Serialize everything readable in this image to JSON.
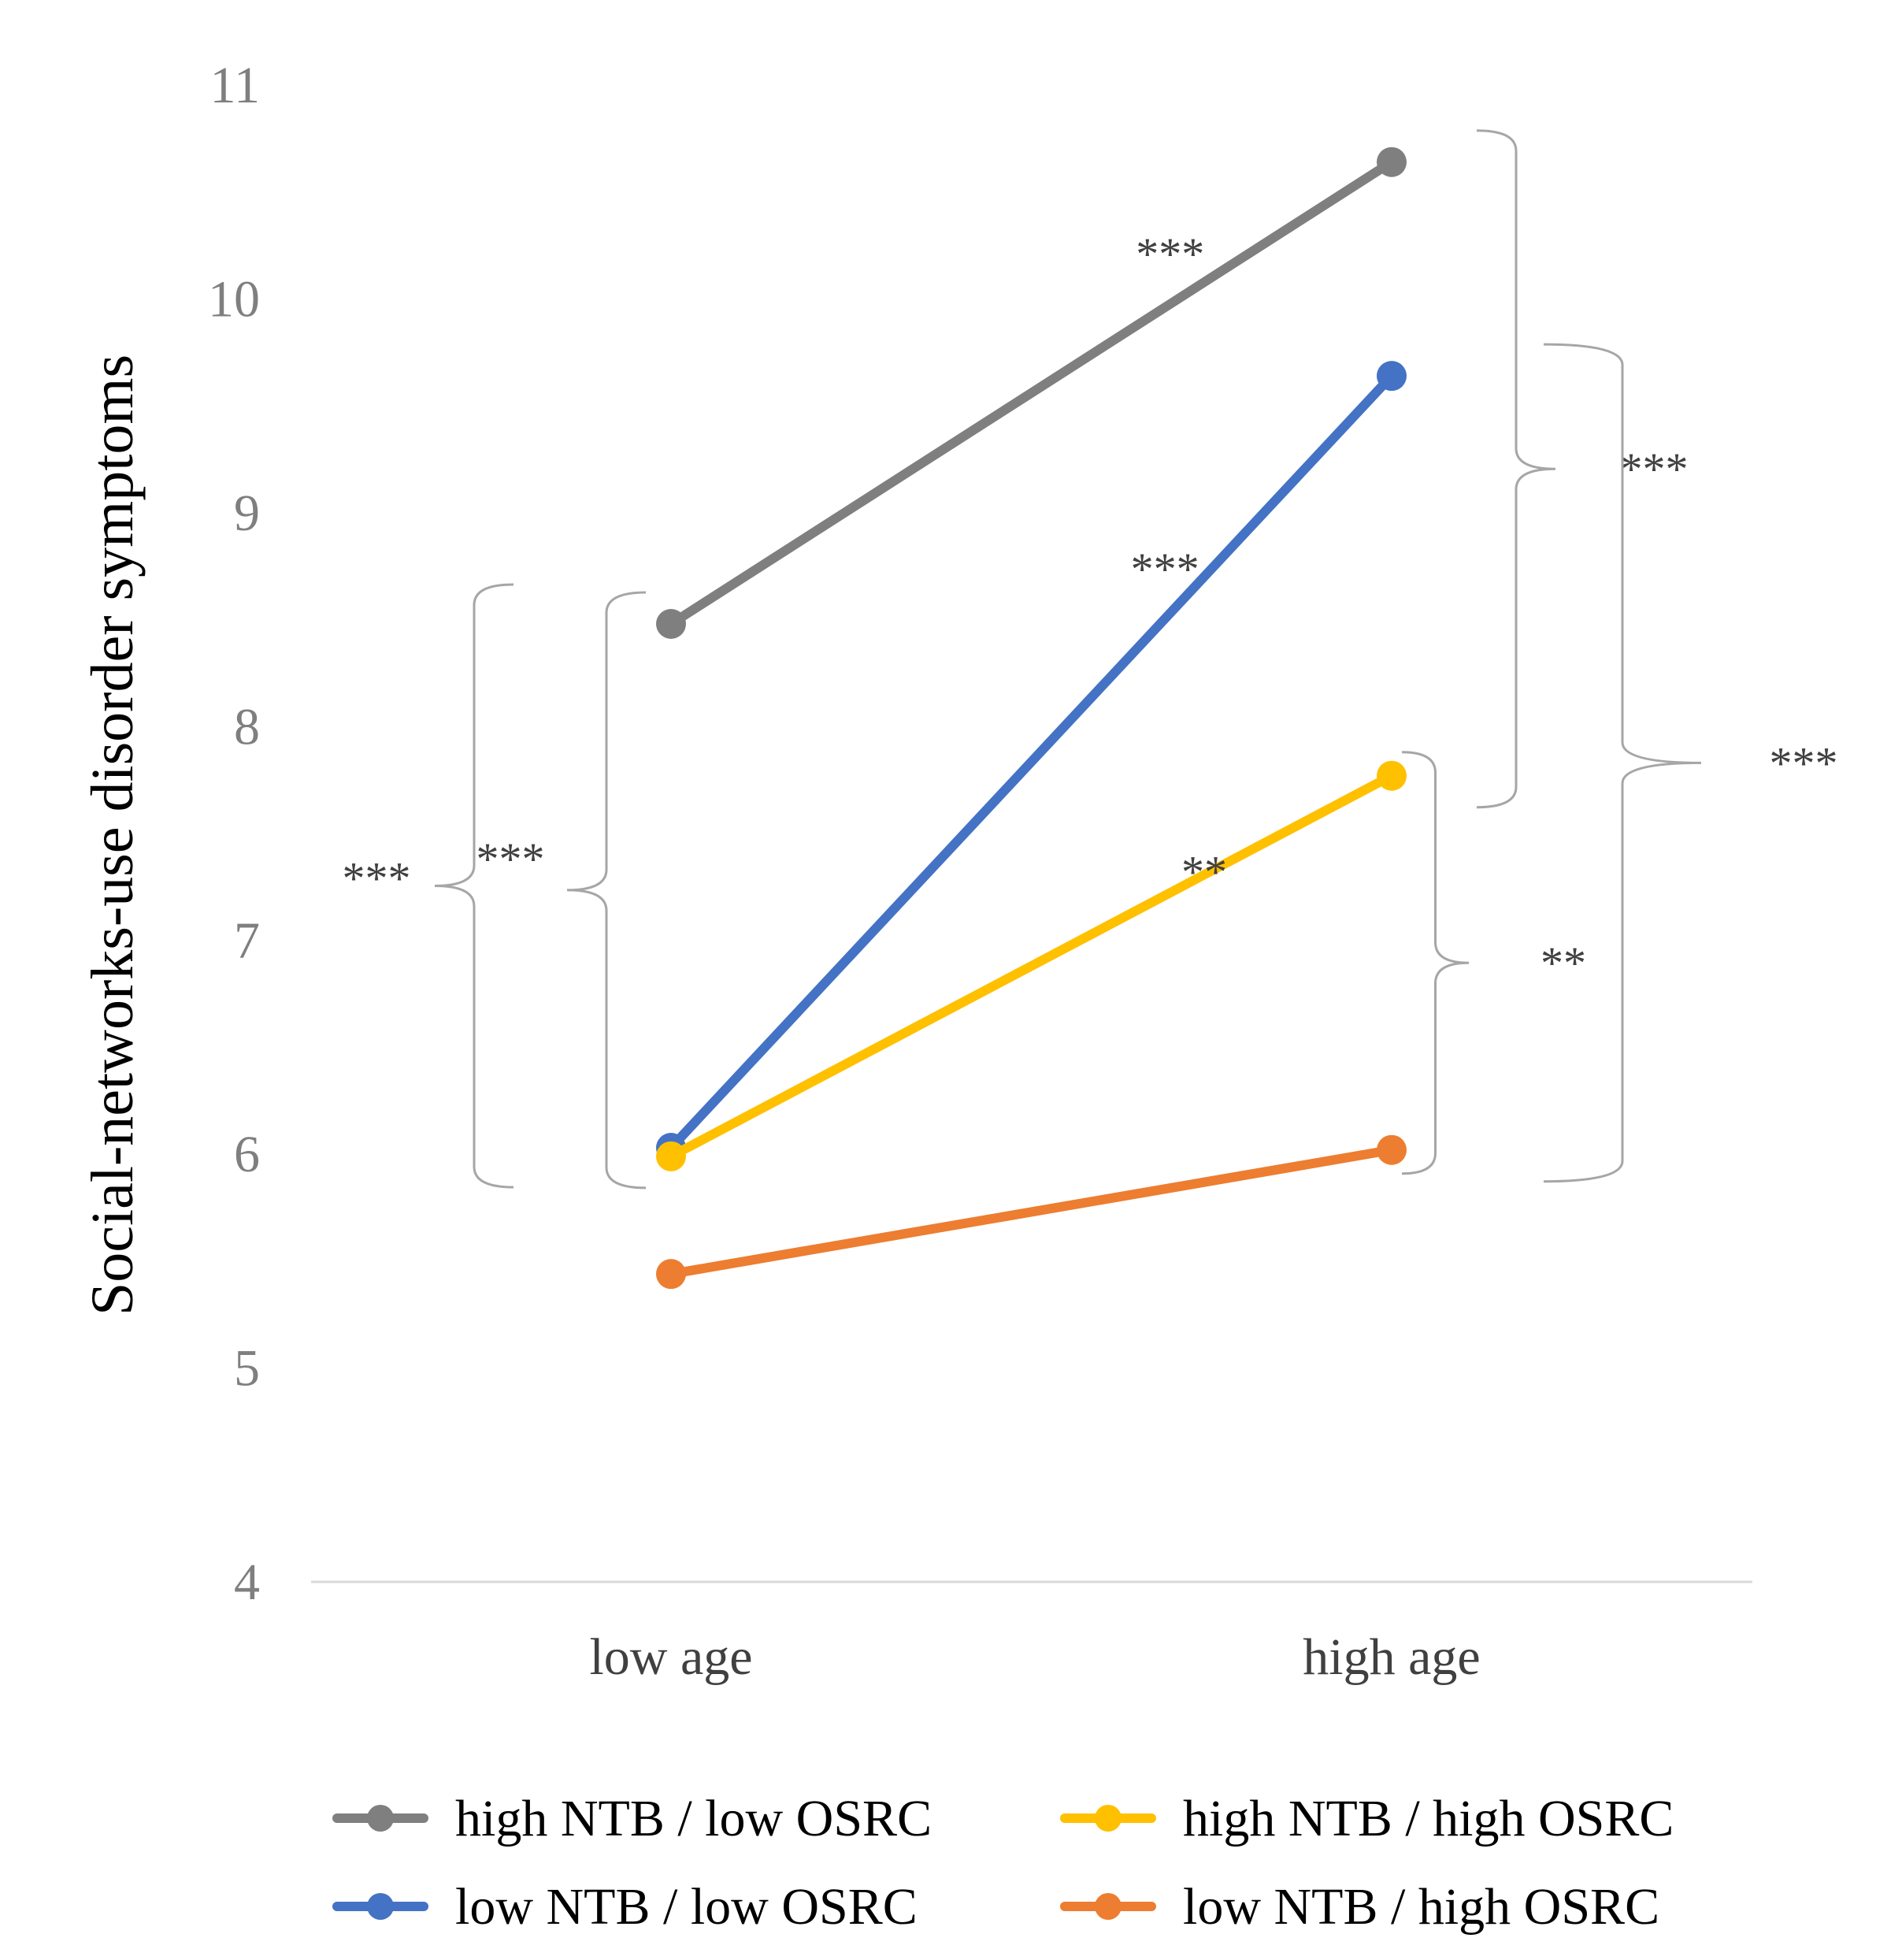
{
  "chart_data": {
    "type": "line",
    "title": "",
    "xlabel": "",
    "ylabel": "Social-networks-use disorder symptoms",
    "ylim": [
      4,
      11
    ],
    "yticks": [
      4,
      5,
      6,
      7,
      8,
      9,
      10,
      11
    ],
    "categories": [
      "low age",
      "high age"
    ],
    "grid": false,
    "legend_position": "bottom",
    "series": [
      {
        "name": "high NTB / low OSRC",
        "color": "#7f7f7f",
        "values": [
          8.48,
          10.64
        ]
      },
      {
        "name": "low NTB / low OSRC",
        "color": "#4472c4",
        "values": [
          6.03,
          9.64
        ]
      },
      {
        "name": "high NTB / high OSRC",
        "color": "#ffc000",
        "values": [
          5.99,
          7.77
        ]
      },
      {
        "name": "low NTB / high OSRC",
        "color": "#ed7d31",
        "values": [
          5.44,
          6.02
        ]
      }
    ],
    "annotations": {
      "slopes": [
        {
          "series": "high NTB / low OSRC",
          "label": "***"
        },
        {
          "series": "low NTB / low OSRC",
          "label": "***"
        },
        {
          "series": "high NTB / high OSRC",
          "label": "**"
        }
      ],
      "brackets": [
        {
          "side": "low age",
          "from": "high NTB / low OSRC",
          "to": "low NTB / low OSRC",
          "label": "***"
        },
        {
          "side": "low age",
          "from": "high NTB / low OSRC",
          "to": "high NTB / high OSRC",
          "label": "***"
        },
        {
          "side": "high age",
          "from": "high NTB / low OSRC",
          "to": "high NTB / high OSRC",
          "label": "***"
        },
        {
          "side": "high age",
          "from": "low NTB / low OSRC",
          "to": "low NTB / high OSRC",
          "label": "***"
        },
        {
          "side": "high age",
          "from": "high NTB / high OSRC",
          "to": "low NTB / high OSRC",
          "label": "**"
        }
      ]
    }
  }
}
